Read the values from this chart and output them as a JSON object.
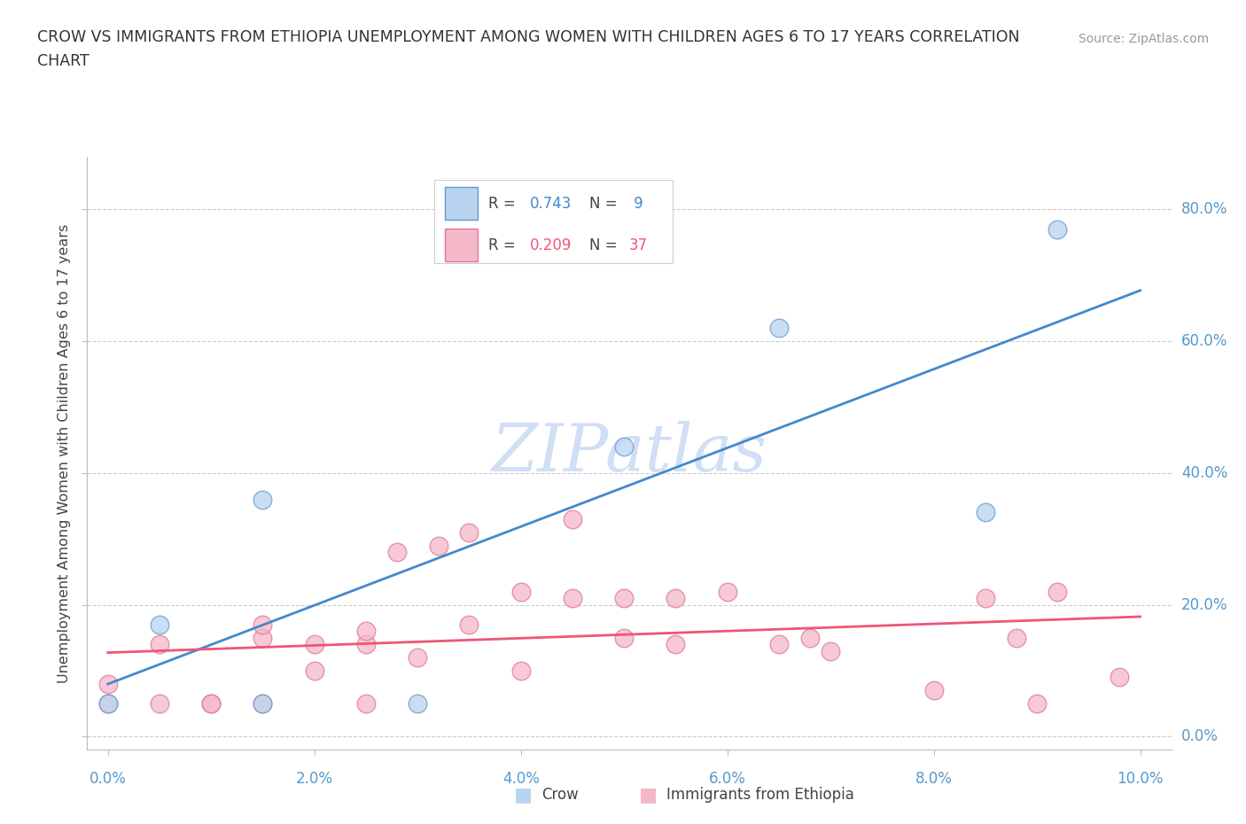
{
  "title_line1": "CROW VS IMMIGRANTS FROM ETHIOPIA UNEMPLOYMENT AMONG WOMEN WITH CHILDREN AGES 6 TO 17 YEARS CORRELATION",
  "title_line2": "CHART",
  "source": "Source: ZipAtlas.com",
  "ylabel": "Unemployment Among Women with Children Ages 6 to 17 years",
  "xlabel_ticks": [
    "0.0%",
    "2.0%",
    "4.0%",
    "6.0%",
    "8.0%",
    "10.0%"
  ],
  "ylabel_ticks": [
    "0.0%",
    "20.0%",
    "40.0%",
    "60.0%",
    "80.0%"
  ],
  "xlim": [
    -0.002,
    0.103
  ],
  "ylim": [
    -0.02,
    0.88
  ],
  "crow_R": 0.743,
  "crow_N": 9,
  "ethiopia_R": 0.209,
  "ethiopia_N": 37,
  "crow_color": "#b8d4f0",
  "crow_edge_color": "#6699cc",
  "ethiopia_color": "#f5b8c8",
  "ethiopia_edge_color": "#dd7799",
  "crow_line_color": "#4488cc",
  "ethiopia_line_color": "#ee5577",
  "watermark_color": "#d0dff5",
  "background_color": "#ffffff",
  "crow_scatter_x": [
    0.0,
    0.005,
    0.015,
    0.015,
    0.03,
    0.05,
    0.065,
    0.085,
    0.092
  ],
  "crow_scatter_y": [
    0.05,
    0.17,
    0.05,
    0.36,
    0.05,
    0.44,
    0.62,
    0.34,
    0.77
  ],
  "ethiopia_scatter_x": [
    0.0,
    0.0,
    0.005,
    0.005,
    0.01,
    0.01,
    0.015,
    0.015,
    0.015,
    0.02,
    0.02,
    0.025,
    0.025,
    0.025,
    0.028,
    0.03,
    0.032,
    0.035,
    0.035,
    0.04,
    0.04,
    0.045,
    0.045,
    0.05,
    0.05,
    0.055,
    0.055,
    0.06,
    0.065,
    0.068,
    0.07,
    0.08,
    0.085,
    0.088,
    0.09,
    0.092,
    0.098
  ],
  "ethiopia_scatter_y": [
    0.05,
    0.08,
    0.05,
    0.14,
    0.05,
    0.05,
    0.05,
    0.15,
    0.17,
    0.1,
    0.14,
    0.05,
    0.14,
    0.16,
    0.28,
    0.12,
    0.29,
    0.17,
    0.31,
    0.1,
    0.22,
    0.21,
    0.33,
    0.15,
    0.21,
    0.14,
    0.21,
    0.22,
    0.14,
    0.15,
    0.13,
    0.07,
    0.21,
    0.15,
    0.05,
    0.22,
    0.09
  ]
}
